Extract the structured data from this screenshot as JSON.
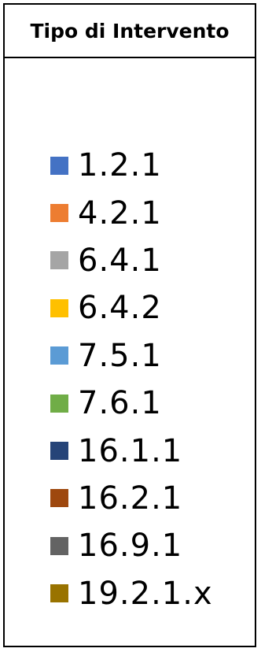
{
  "chart_data": {
    "type": "legend",
    "title": "Tipo di Intervento",
    "legend": [
      {
        "label": "1.2.1",
        "color": "#4472C4"
      },
      {
        "label": "4.2.1",
        "color": "#ED7D31"
      },
      {
        "label": "6.4.1",
        "color": "#A5A5A5"
      },
      {
        "label": "6.4.2",
        "color": "#FFC000"
      },
      {
        "label": "7.5.1",
        "color": "#5B9BD5"
      },
      {
        "label": "7.6.1",
        "color": "#70AD47"
      },
      {
        "label": "16.1.1",
        "color": "#264478"
      },
      {
        "label": "16.2.1",
        "color": "#9E480E"
      },
      {
        "label": "16.9.1",
        "color": "#636363"
      },
      {
        "label": "19.2.1.x",
        "color": "#997300"
      }
    ]
  }
}
